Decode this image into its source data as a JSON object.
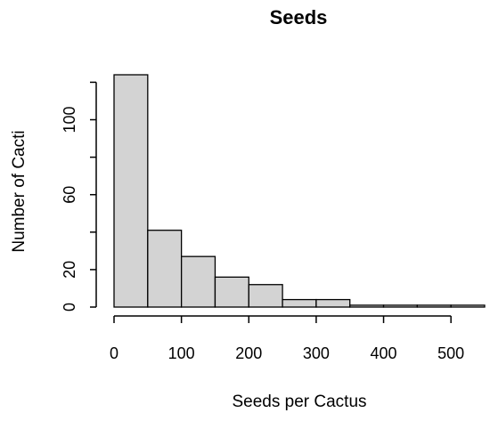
{
  "chart_data": {
    "type": "bar",
    "title": "Seeds",
    "xlabel": "Seeds per Cactus",
    "ylabel": "Number of Cacti",
    "bin_edges": [
      0,
      50,
      100,
      150,
      200,
      250,
      300,
      350,
      400,
      450,
      500,
      550
    ],
    "values": [
      124,
      41,
      27,
      16,
      12,
      4,
      4,
      1,
      1,
      1,
      1
    ],
    "xlim": [
      0,
      550
    ],
    "ylim": [
      0,
      124
    ],
    "x_ticks": [
      0,
      100,
      200,
      300,
      400,
      500
    ],
    "x_tick_labels": [
      "0",
      "100",
      "200",
      "300",
      "400",
      "500"
    ],
    "y_ticks": [
      0,
      20,
      60,
      100
    ],
    "y_tick_labels": [
      "0",
      "20",
      "60",
      "100"
    ],
    "y_minor_ticks": [
      40,
      80,
      120
    ],
    "grid": false,
    "colors": {
      "bar_fill": "#d3d3d3",
      "bar_stroke": "#000000"
    }
  }
}
